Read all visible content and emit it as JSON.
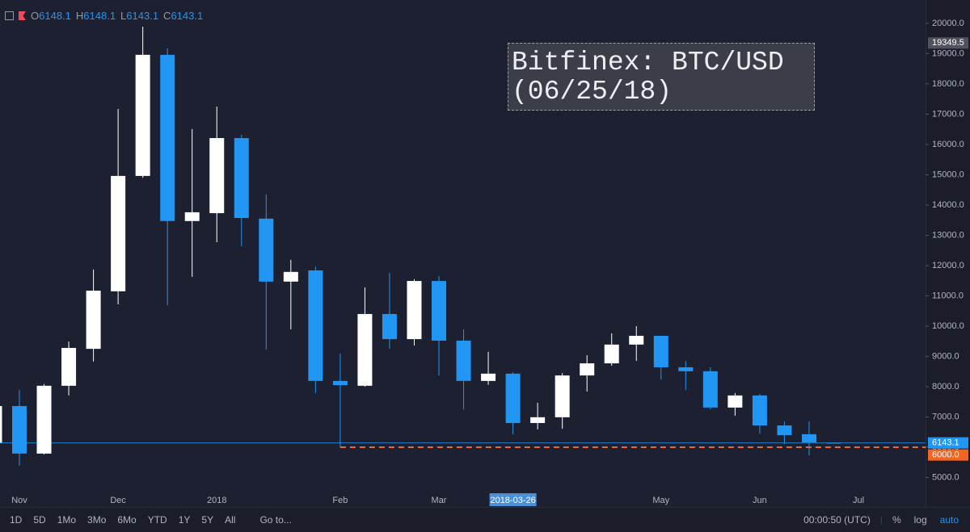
{
  "chart_data": {
    "type": "candlestick",
    "legend": {
      "items": [
        {
          "label": "O",
          "value": 6148.1
        },
        {
          "label": "H",
          "value": 6148.1
        },
        {
          "label": "L",
          "value": 6143.1
        },
        {
          "label": "C",
          "value": 6143.1
        }
      ]
    },
    "annotation": [
      "Bitfinex: BTC/USD",
      "(06/25/18)"
    ],
    "categories": [
      null,
      "Nov",
      null,
      null,
      null,
      "Dec",
      null,
      null,
      null,
      "2018",
      null,
      null,
      null,
      null,
      "Feb",
      null,
      null,
      null,
      "Mar",
      null,
      null,
      "2018-03-26",
      null,
      null,
      null,
      null,
      null,
      "May",
      null,
      null,
      null,
      "Jun",
      null,
      null,
      null,
      "Jul"
    ],
    "open": [
      6150,
      7360,
      5790,
      8030,
      9250,
      11150,
      14960,
      18960,
      13470,
      13730,
      16210,
      13550,
      11470,
      11840,
      8190,
      8030,
      10400,
      9570,
      11490,
      9520,
      8190,
      8430,
      6800,
      6990,
      8370,
      8770,
      9390,
      9680,
      8640,
      8510,
      7310,
      7710,
      6720,
      6430,
      6148.1,
      null
    ],
    "high": [
      7420,
      7890,
      8090,
      9490,
      11870,
      17170,
      19890,
      19170,
      16510,
      17250,
      16320,
      14350,
      12190,
      11970,
      9090,
      11280,
      11760,
      11550,
      11650,
      9890,
      9150,
      8480,
      7470,
      8450,
      9040,
      9760,
      10000,
      9680,
      8850,
      8640,
      7790,
      7760,
      6850,
      6850,
      6148.1,
      null
    ],
    "low": [
      6100,
      5390,
      5760,
      7710,
      8830,
      10720,
      14900,
      10690,
      11630,
      12770,
      12640,
      9230,
      9890,
      7790,
      6000,
      8000,
      9250,
      9360,
      8370,
      7250,
      8060,
      6430,
      6590,
      6610,
      7840,
      8690,
      8850,
      8240,
      7890,
      7250,
      7040,
      6450,
      6110,
      5730,
      6143.1,
      null
    ],
    "close": [
      7360,
      5790,
      8030,
      9280,
      11170,
      14960,
      18960,
      13470,
      13760,
      16210,
      13570,
      11470,
      11790,
      8190,
      8050,
      10400,
      9570,
      11490,
      9520,
      8190,
      8430,
      6800,
      6990,
      8370,
      8770,
      9390,
      9680,
      8640,
      8510,
      7310,
      7710,
      6720,
      6400,
      6160,
      6143.1,
      null
    ],
    "up_color": "#ffffff",
    "down_color": "#2196f3",
    "ylim": [
      4640,
      20770
    ],
    "yticks": [
      {
        "value": 5000,
        "label": "5000.0"
      },
      {
        "value": 6000,
        "label": "6000.0"
      },
      {
        "value": 7000,
        "label": "7000.0"
      },
      {
        "value": 8000,
        "label": "8000.0"
      },
      {
        "value": 9000,
        "label": "9000.0"
      },
      {
        "value": 10000,
        "label": "10000.0"
      },
      {
        "value": 11000,
        "label": "11000.0"
      },
      {
        "value": 12000,
        "label": "12000.0"
      },
      {
        "value": 13000,
        "label": "13000.0"
      },
      {
        "value": 14000,
        "label": "14000.0"
      },
      {
        "value": 15000,
        "label": "15000.0"
      },
      {
        "value": 16000,
        "label": "16000.0"
      },
      {
        "value": 17000,
        "label": "17000.0"
      },
      {
        "value": 18000,
        "label": "18000.0"
      },
      {
        "value": 19000,
        "label": "19000.0"
      },
      {
        "value": 20000,
        "label": "20000.0"
      }
    ],
    "price_markers": [
      {
        "value": 19349.5,
        "label": "19349.5",
        "color": "#50535e",
        "line_style": "none"
      },
      {
        "value": 6143.1,
        "label": "6143.1",
        "color": "#2196f3",
        "line_style": "solid"
      },
      {
        "value": 6000,
        "label": "6000.0",
        "color": "#f26522",
        "line_style": "dashed"
      }
    ]
  },
  "toolbar": {
    "ranges": [
      "1D",
      "5D",
      "1Mo",
      "3Mo",
      "6Mo",
      "YTD",
      "1Y",
      "5Y",
      "All"
    ],
    "goto": "Go to...",
    "clock": "00:00:50 (UTC)",
    "options": [
      "%",
      "log",
      "auto"
    ]
  }
}
